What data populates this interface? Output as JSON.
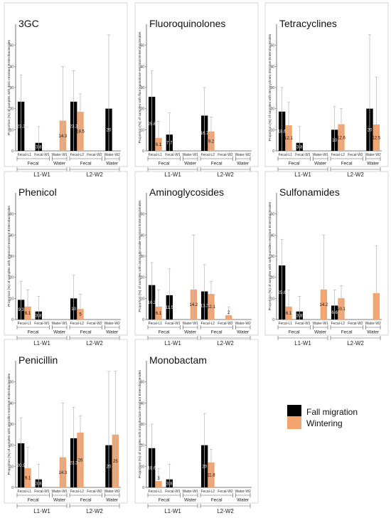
{
  "chart_data": [
    {
      "type": "bar",
      "title": "3GC",
      "ylabel": "Proportion (%) of samples with 3GC-resistant Enterobacterales",
      "ylim": [
        0,
        60
      ],
      "yticks": [
        0,
        10,
        20,
        30,
        40,
        50
      ],
      "categories": [
        "Fecal-L1",
        "Fecal-W1",
        "Water-W1",
        "Fecal-L2",
        "Fecal-W2",
        "Water-W2"
      ],
      "series": [
        {
          "name": "Fall migration",
          "values": [
            23.3,
            3.8,
            null,
            23.3,
            null,
            20
          ],
          "ci_upper": [
            36,
            11.5,
            null,
            38,
            null,
            55
          ]
        },
        {
          "name": "Wintering",
          "values": [
            null,
            null,
            14.3,
            18.5,
            null,
            null
          ],
          "ci_upper": [
            null,
            null,
            40,
            27,
            null,
            null
          ]
        }
      ],
      "data_labels": [
        {
          "series": "Fall migration",
          "category": "Fecal-L1",
          "text": "23.3"
        },
        {
          "series": "Fall migration",
          "category": "Fecal-W1",
          "text": "3.8"
        },
        {
          "series": "Wintering",
          "category": "Water-W1",
          "text": "14.3"
        },
        {
          "series": "Fall migration",
          "category": "Fecal-L2",
          "text": "23.3"
        },
        {
          "series": "Wintering",
          "category": "Fecal-L2",
          "text": "18.5"
        },
        {
          "series": "Fall migration",
          "category": "Water-W2",
          "text": "20"
        }
      ],
      "sub_groups": [
        {
          "label": "Fecal",
          "from": 0,
          "to": 1
        },
        {
          "label": "Water",
          "from": 2,
          "to": 2
        },
        {
          "label": "Fecal",
          "from": 3,
          "to": 4
        },
        {
          "label": "Water",
          "from": 5,
          "to": 5
        }
      ],
      "groups": [
        {
          "label": "L1-W1",
          "from": 0,
          "to": 2
        },
        {
          "label": "L2-W2",
          "from": 3,
          "to": 5
        }
      ]
    },
    {
      "type": "bar",
      "title": "Fluoroquinolones",
      "ylabel": "Proportion (%) of samples with fluoroquinolone-resistant Enterobacterales",
      "ylim": [
        0,
        60
      ],
      "yticks": [
        0,
        10,
        20,
        30,
        40,
        50
      ],
      "categories": [
        "Fecal-L1",
        "Fecal-W1",
        "Water-W1",
        "Fecal-L2",
        "Fecal-W2",
        "Water-W2"
      ],
      "series": [
        {
          "name": "Fall migration",
          "values": [
            25.6,
            7.7,
            null,
            16.7,
            null,
            null
          ],
          "ci_upper": [
            38,
            18,
            null,
            30,
            null,
            null
          ]
        },
        {
          "name": "Wintering",
          "values": [
            6.1,
            null,
            null,
            9.2,
            null,
            null
          ],
          "ci_upper": [
            14,
            null,
            null,
            16,
            null,
            null
          ]
        }
      ],
      "data_labels": [
        {
          "series": "Fall migration",
          "category": "Fecal-L1",
          "text": "25.6"
        },
        {
          "series": "Wintering",
          "category": "Fecal-L1",
          "text": "6.1"
        },
        {
          "series": "Fall migration",
          "category": "Fecal-W1",
          "text": "7.7"
        },
        {
          "series": "Fall migration",
          "category": "Fecal-L2",
          "text": "16.7"
        },
        {
          "series": "Wintering",
          "category": "Fecal-L2",
          "text": "9.2"
        }
      ],
      "sub_groups": [
        {
          "label": "Fecal",
          "from": 0,
          "to": 1
        },
        {
          "label": "Water",
          "from": 2,
          "to": 2
        },
        {
          "label": "Fecal",
          "from": 3,
          "to": 4
        },
        {
          "label": "Water",
          "from": 5,
          "to": 5
        }
      ],
      "groups": [
        {
          "label": "L1-W1",
          "from": 0,
          "to": 2
        },
        {
          "label": "L2-W2",
          "from": 3,
          "to": 5
        }
      ]
    },
    {
      "type": "bar",
      "title": "Tetracyclines",
      "ylabel": "Proportion (%) of samples with tetracyclines-resistant Enterobacterales",
      "ylim": [
        0,
        60
      ],
      "yticks": [
        0,
        10,
        20,
        30,
        40,
        50
      ],
      "categories": [
        "Fecal-L1",
        "Fecal-W1",
        "Water-W1",
        "Fecal-L2",
        "Fecal-W2",
        "Water-W2"
      ],
      "series": [
        {
          "name": "Fall migration",
          "values": [
            18.6,
            3.8,
            null,
            10,
            null,
            20
          ],
          "ci_upper": [
            30,
            11.5,
            null,
            21,
            null,
            55
          ]
        },
        {
          "name": "Wintering",
          "values": [
            12.1,
            null,
            null,
            12.6,
            null,
            12.5
          ],
          "ci_upper": [
            23,
            null,
            null,
            20,
            null,
            35
          ]
        }
      ],
      "data_labels": [
        {
          "series": "Fall migration",
          "category": "Fecal-L1",
          "text": "18.6"
        },
        {
          "series": "Wintering",
          "category": "Fecal-L1",
          "text": "12.1"
        },
        {
          "series": "Fall migration",
          "category": "Fecal-W1",
          "text": "3.8"
        },
        {
          "series": "Fall migration",
          "category": "Fecal-L2",
          "text": "10"
        },
        {
          "series": "Wintering",
          "category": "Fecal-L2",
          "text": "12.6"
        },
        {
          "series": "Fall migration",
          "category": "Water-W2",
          "text": "20"
        },
        {
          "series": "Wintering",
          "category": "Water-W2",
          "text": "12.5"
        }
      ],
      "sub_groups": [
        {
          "label": "Fecal",
          "from": 0,
          "to": 1
        },
        {
          "label": "Water",
          "from": 2,
          "to": 2
        },
        {
          "label": "Fecal",
          "from": 3,
          "to": 4
        },
        {
          "label": "Water",
          "from": 5,
          "to": 5
        }
      ],
      "groups": [
        {
          "label": "L1-W1",
          "from": 0,
          "to": 2
        },
        {
          "label": "L2-W2",
          "from": 3,
          "to": 5
        }
      ]
    },
    {
      "type": "bar",
      "title": "Phenicol",
      "ylabel": "Proportion (%) of samples with phenicol-resistant Enterobacterales",
      "ylim": [
        0,
        60
      ],
      "yticks": [
        0,
        10,
        20,
        30,
        40,
        50
      ],
      "categories": [
        "Fecal-L1",
        "Fecal-W1",
        "Water-W1",
        "Fecal-L2",
        "Fecal-W2",
        "Water-W2"
      ],
      "series": [
        {
          "name": "Fall migration",
          "values": [
            9.3,
            3.8,
            null,
            10,
            null,
            null
          ],
          "ci_upper": [
            18,
            11,
            null,
            21,
            null,
            null
          ]
        },
        {
          "name": "Wintering",
          "values": [
            6.1,
            null,
            null,
            5,
            null,
            null
          ],
          "ci_upper": [
            14,
            null,
            null,
            12,
            null,
            null
          ]
        }
      ],
      "data_labels": [
        {
          "series": "Fall migration",
          "category": "Fecal-L1",
          "text": "9.3"
        },
        {
          "series": "Wintering",
          "category": "Fecal-L1",
          "text": "6.1"
        },
        {
          "series": "Fall migration",
          "category": "Fecal-W1",
          "text": "3.8"
        },
        {
          "series": "Fall migration",
          "category": "Fecal-L2",
          "text": "10"
        },
        {
          "series": "Wintering",
          "category": "Fecal-L2",
          "text": "5"
        }
      ],
      "sub_groups": [
        {
          "label": "Fecal",
          "from": 0,
          "to": 1
        },
        {
          "label": "Water",
          "from": 2,
          "to": 2
        },
        {
          "label": "Fecal",
          "from": 3,
          "to": 4
        },
        {
          "label": "Water",
          "from": 5,
          "to": 5
        }
      ],
      "groups": [
        {
          "label": "L1-W1",
          "from": 0,
          "to": 2
        },
        {
          "label": "L2-W2",
          "from": 3,
          "to": 5
        }
      ]
    },
    {
      "type": "bar",
      "title": "Aminoglycosides",
      "ylabel": "Proportion (%) of samples with aminoglycoside-resistant Enterobacterales",
      "ylim": [
        0,
        60
      ],
      "yticks": [
        0,
        10,
        20,
        30,
        40,
        50
      ],
      "categories": [
        "Fecal-L1",
        "Fecal-W1",
        "Water-W1",
        "Fecal-L2",
        "Fecal-W2",
        "Water-W2"
      ],
      "series": [
        {
          "name": "Fall migration",
          "values": [
            16.3,
            11.5,
            null,
            13.3,
            null,
            null
          ],
          "ci_upper": [
            27,
            24,
            null,
            26,
            null,
            null
          ]
        },
        {
          "name": "Wintering",
          "values": [
            6.1,
            null,
            14.2,
            12.1,
            2,
            null
          ],
          "ci_upper": [
            14,
            null,
            40,
            18,
            6,
            null
          ]
        }
      ],
      "data_labels": [
        {
          "series": "Fall migration",
          "category": "Fecal-L1",
          "text": "16.3"
        },
        {
          "series": "Wintering",
          "category": "Fecal-L1",
          "text": "6.1"
        },
        {
          "series": "Fall migration",
          "category": "Fecal-W1",
          "text": "11.5"
        },
        {
          "series": "Wintering",
          "category": "Water-W1",
          "text": "14.2"
        },
        {
          "series": "Fall migration",
          "category": "Fecal-L2",
          "text": "13.3"
        },
        {
          "series": "Wintering",
          "category": "Fecal-L2",
          "text": "12.1"
        },
        {
          "series": "Wintering",
          "category": "Fecal-W2",
          "text": "2"
        }
      ],
      "sub_groups": [
        {
          "label": "Fecal",
          "from": 0,
          "to": 1
        },
        {
          "label": "Water",
          "from": 2,
          "to": 2
        },
        {
          "label": "Fecal",
          "from": 3,
          "to": 4
        },
        {
          "label": "Water",
          "from": 5,
          "to": 5
        }
      ],
      "groups": [
        {
          "label": "L1-W1",
          "from": 0,
          "to": 2
        },
        {
          "label": "L2-W2",
          "from": 3,
          "to": 5
        }
      ]
    },
    {
      "type": "bar",
      "title": "Sulfonamides",
      "ylabel": "Proportion (%) of samples with sulfonamides-resistant Enterobacterales",
      "ylim": [
        0,
        60
      ],
      "yticks": [
        0,
        10,
        20,
        30,
        40,
        50
      ],
      "categories": [
        "Fecal-L1",
        "Fecal-W1",
        "Water-W1",
        "Fecal-L2",
        "Fecal-W2",
        "Water-W2"
      ],
      "series": [
        {
          "name": "Fall migration",
          "values": [
            25.6,
            3.8,
            null,
            6.6,
            null,
            null
          ],
          "ci_upper": [
            38,
            11,
            null,
            14,
            null,
            null
          ]
        },
        {
          "name": "Wintering",
          "values": [
            6.1,
            null,
            14.2,
            10.1,
            null,
            12.5
          ],
          "ci_upper": [
            14,
            null,
            40,
            16,
            null,
            35
          ]
        }
      ],
      "data_labels": [
        {
          "series": "Fall migration",
          "category": "Fecal-L1",
          "text": "25.6"
        },
        {
          "series": "Wintering",
          "category": "Fecal-L1",
          "text": "6.1"
        },
        {
          "series": "Fall migration",
          "category": "Fecal-W1",
          "text": "3.8"
        },
        {
          "series": "Wintering",
          "category": "Water-W1",
          "text": "14.2"
        },
        {
          "series": "Fall migration",
          "category": "Fecal-L2",
          "text": "6.6"
        },
        {
          "series": "Wintering",
          "category": "Fecal-L2",
          "text": "10.1"
        }
      ],
      "sub_groups": [
        {
          "label": "Fecal",
          "from": 0,
          "to": 1
        },
        {
          "label": "Water",
          "from": 2,
          "to": 2
        },
        {
          "label": "Fecal",
          "from": 3,
          "to": 4
        },
        {
          "label": "Water",
          "from": 5,
          "to": 5
        }
      ],
      "groups": [
        {
          "label": "L1-W1",
          "from": 0,
          "to": 2
        },
        {
          "label": "L2-W2",
          "from": 3,
          "to": 5
        }
      ]
    },
    {
      "type": "bar",
      "title": "Penicillin",
      "ylabel": "Proportion (%) of samples with penicillin-resistant Enterobacterales",
      "ylim": [
        0,
        60
      ],
      "yticks": [
        0,
        10,
        20,
        30,
        40,
        50
      ],
      "categories": [
        "Fecal-L1",
        "Fecal-W1",
        "Water-W1",
        "Fecal-L2",
        "Fecal-W2",
        "Water-W2"
      ],
      "series": [
        {
          "name": "Fall migration",
          "values": [
            20.9,
            3.8,
            null,
            23.3,
            null,
            20
          ],
          "ci_upper": [
            33,
            11,
            null,
            38,
            null,
            55
          ]
        },
        {
          "name": "Wintering",
          "values": [
            9.1,
            null,
            14.3,
            26,
            null,
            25
          ],
          "ci_upper": [
            19,
            null,
            40,
            34,
            null,
            55
          ]
        }
      ],
      "data_labels": [
        {
          "series": "Fall migration",
          "category": "Fecal-L1",
          "text": "20.9"
        },
        {
          "series": "Wintering",
          "category": "Fecal-L1",
          "text": "9.1"
        },
        {
          "series": "Fall migration",
          "category": "Fecal-W1",
          "text": "3.8"
        },
        {
          "series": "Wintering",
          "category": "Water-W1",
          "text": "14.3"
        },
        {
          "series": "Fall migration",
          "category": "Fecal-L2",
          "text": "23.3"
        },
        {
          "series": "Wintering",
          "category": "Fecal-L2",
          "text": "26"
        },
        {
          "series": "Fall migration",
          "category": "Water-W2",
          "text": "20"
        },
        {
          "series": "Wintering",
          "category": "Water-W2",
          "text": "25"
        }
      ],
      "sub_groups": [
        {
          "label": "Fecal",
          "from": 0,
          "to": 1
        },
        {
          "label": "Water",
          "from": 2,
          "to": 2
        },
        {
          "label": "Fecal",
          "from": 3,
          "to": 4
        },
        {
          "label": "Water",
          "from": 5,
          "to": 5
        }
      ],
      "groups": [
        {
          "label": "L1-W1",
          "from": 0,
          "to": 2
        },
        {
          "label": "L2-W2",
          "from": 3,
          "to": 5
        }
      ]
    },
    {
      "type": "bar",
      "title": "Monobactam",
      "ylabel": "Proportion (%) of samples with monobactam-resistant Enterobacterales",
      "ylim": [
        0,
        60
      ],
      "yticks": [
        0,
        10,
        20,
        30,
        40,
        50
      ],
      "categories": [
        "Fecal-L1",
        "Fecal-W1",
        "Water-W1",
        "Fecal-L2",
        "Fecal-W2",
        "Water-W2"
      ],
      "series": [
        {
          "name": "Fall migration",
          "values": [
            18.6,
            3.8,
            null,
            20,
            null,
            null
          ],
          "ci_upper": [
            30,
            11,
            null,
            35,
            null,
            null
          ]
        },
        {
          "name": "Wintering",
          "values": [
            3,
            null,
            null,
            11.8,
            null,
            null
          ],
          "ci_upper": [
            9,
            null,
            null,
            18,
            null,
            null
          ]
        }
      ],
      "data_labels": [
        {
          "series": "Fall migration",
          "category": "Fecal-L1",
          "text": "18.6"
        },
        {
          "series": "Wintering",
          "category": "Fecal-L1",
          "text": "3"
        },
        {
          "series": "Fall migration",
          "category": "Fecal-W1",
          "text": "3.8"
        },
        {
          "series": "Fall migration",
          "category": "Fecal-L2",
          "text": "20"
        },
        {
          "series": "Wintering",
          "category": "Fecal-L2",
          "text": "11.8"
        }
      ],
      "sub_groups": [
        {
          "label": "Fecal",
          "from": 0,
          "to": 1
        },
        {
          "label": "Water",
          "from": 2,
          "to": 2
        },
        {
          "label": "Fecal",
          "from": 3,
          "to": 4
        },
        {
          "label": "Water",
          "from": 5,
          "to": 5
        }
      ],
      "groups": [
        {
          "label": "L1-W1",
          "from": 0,
          "to": 2
        },
        {
          "label": "L2-W2",
          "from": 3,
          "to": 5
        }
      ]
    }
  ],
  "legend": {
    "items": [
      {
        "label": "Fall migration",
        "color": "#000000"
      },
      {
        "label": "Wintering",
        "color": "#f4a46f"
      }
    ]
  },
  "colors": {
    "fall_migration": "#000000",
    "wintering": "#f4a46f",
    "error_bar": "#bdbdbd",
    "axis": "#555555",
    "panel_border": "#cccccc"
  }
}
